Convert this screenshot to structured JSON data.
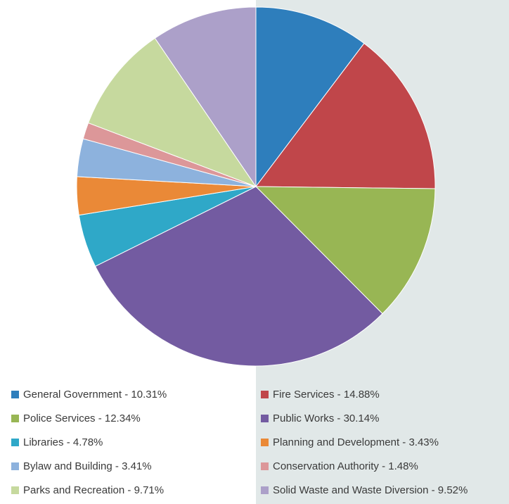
{
  "chart_data": {
    "type": "pie",
    "legend_position": "bottom",
    "slices": [
      {
        "label": "General Government - 10.31%",
        "value": 10.31,
        "color": "#2e7ebc"
      },
      {
        "label": "Fire Services - 14.88%",
        "value": 14.88,
        "color": "#c0464a"
      },
      {
        "label": "Police Services - 12.34%",
        "value": 12.34,
        "color": "#98b654"
      },
      {
        "label": "Public Works - 30.14%",
        "value": 30.14,
        "color": "#735ba1"
      },
      {
        "label": "Libraries - 4.78%",
        "value": 4.78,
        "color": "#2fa8c8"
      },
      {
        "label": "Planning and Development - 3.43%",
        "value": 3.43,
        "color": "#ea8937"
      },
      {
        "label": "Bylaw and Building - 3.41%",
        "value": 3.41,
        "color": "#8db2dd"
      },
      {
        "label": "Conservation Authority - 1.48%",
        "value": 1.48,
        "color": "#dc9799"
      },
      {
        "label": "Parks and Recreation - 9.71%",
        "value": 9.71,
        "color": "#c6d99e"
      },
      {
        "label": "Solid Waste and Waste Diversion - 9.52%",
        "value": 9.52,
        "color": "#aca0c9"
      }
    ]
  }
}
